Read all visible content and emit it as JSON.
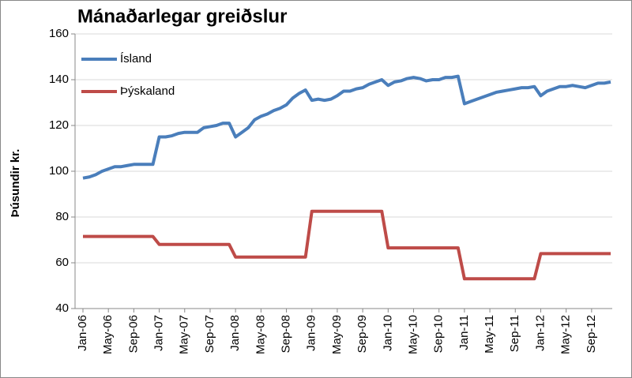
{
  "chart_data": {
    "type": "line",
    "title": "Mánaðarlegar greiðslur",
    "y_label": "Þúsundir kr.",
    "categories": [
      "Jan-06",
      null,
      null,
      null,
      "May-06",
      null,
      null,
      null,
      "Sep-06",
      null,
      null,
      null,
      "Jan-07",
      null,
      null,
      null,
      "May-07",
      null,
      null,
      null,
      "Sep-07",
      null,
      null,
      null,
      "Jan-08",
      null,
      null,
      null,
      "May-08",
      null,
      null,
      null,
      "Sep-08",
      null,
      null,
      null,
      "Jan-09",
      null,
      null,
      null,
      "May-09",
      null,
      null,
      null,
      "Sep-09",
      null,
      null,
      null,
      "Jan-10",
      null,
      null,
      null,
      "May-10",
      null,
      null,
      null,
      "Sep-10",
      null,
      null,
      null,
      "Jan-11",
      null,
      null,
      null,
      "May-11",
      null,
      null,
      null,
      "Sep-11",
      null,
      null,
      null,
      "Jan-12",
      null,
      null,
      null,
      "May-12",
      null,
      null,
      null,
      "Sep-12",
      null,
      null,
      null
    ],
    "series": [
      {
        "name": "Ísland",
        "color": "#4a7ebb",
        "values": [
          97,
          97.5,
          98.5,
          100,
          101,
          102,
          102,
          102.5,
          103,
          103,
          103,
          103,
          115,
          115,
          115.5,
          116.5,
          117,
          117,
          117,
          119,
          119.5,
          120,
          121,
          121,
          115,
          117,
          119,
          122.5,
          124,
          125,
          126.5,
          127.5,
          129,
          132,
          134,
          135.5,
          131,
          131.5,
          131,
          131.5,
          133,
          135,
          135,
          136,
          136.5,
          138,
          139,
          140,
          137.5,
          139,
          139.5,
          140.5,
          141,
          140.5,
          139.5,
          140,
          140,
          141,
          141,
          141.5,
          129.5,
          130.5,
          131.5,
          132.5,
          133.5,
          134.5,
          135,
          135.5,
          136,
          136.5,
          136.5,
          137,
          133,
          135,
          136,
          137,
          137,
          137.5,
          137,
          136.5,
          137.5,
          138.5,
          138.5,
          139
        ]
      },
      {
        "name": "Þýskaland",
        "color": "#be4b48",
        "values": [
          71.5,
          71.5,
          71.5,
          71.5,
          71.5,
          71.5,
          71.5,
          71.5,
          71.5,
          71.5,
          71.5,
          71.5,
          68,
          68,
          68,
          68,
          68,
          68,
          68,
          68,
          68,
          68,
          68,
          68,
          62.5,
          62.5,
          62.5,
          62.5,
          62.5,
          62.5,
          62.5,
          62.5,
          62.5,
          62.5,
          62.5,
          62.5,
          82.5,
          82.5,
          82.5,
          82.5,
          82.5,
          82.5,
          82.5,
          82.5,
          82.5,
          82.5,
          82.5,
          82.5,
          66.5,
          66.5,
          66.5,
          66.5,
          66.5,
          66.5,
          66.5,
          66.5,
          66.5,
          66.5,
          66.5,
          66.5,
          53,
          53,
          53,
          53,
          53,
          53,
          53,
          53,
          53,
          53,
          53,
          53,
          64,
          64,
          64,
          64,
          64,
          64,
          64,
          64,
          64,
          64,
          64,
          64
        ]
      }
    ],
    "ylim": [
      40,
      160
    ],
    "yticks": [
      40,
      60,
      80,
      100,
      120,
      140,
      160
    ],
    "grid": true,
    "legend": "top-left"
  }
}
